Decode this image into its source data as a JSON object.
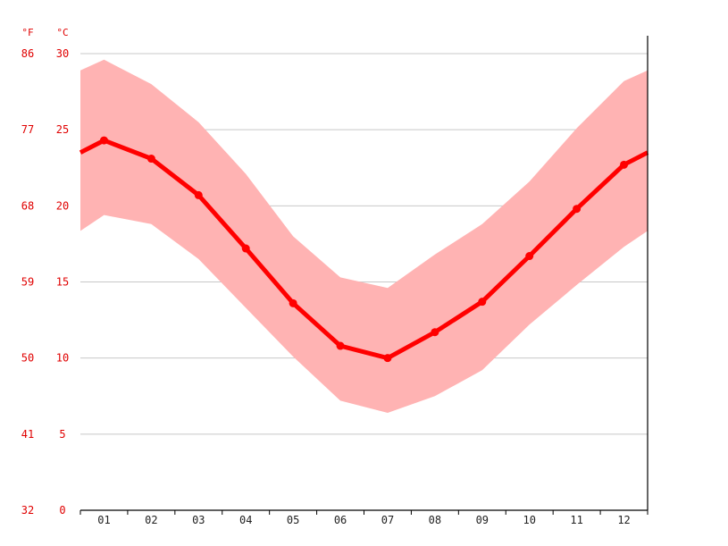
{
  "chart_data": {
    "type": "line",
    "units": {
      "fahrenheit": "°F",
      "celsius": "°C"
    },
    "categories": [
      "01",
      "02",
      "03",
      "04",
      "05",
      "06",
      "07",
      "08",
      "09",
      "10",
      "11",
      "12"
    ],
    "yticks_c": [
      0,
      5,
      10,
      15,
      20,
      25,
      30
    ],
    "yticks_f": [
      32,
      41,
      50,
      59,
      68,
      77,
      86
    ],
    "ylim": [
      0,
      30
    ],
    "grid": true,
    "series": [
      {
        "values": [
          24.3,
          23.1,
          20.7,
          17.2,
          13.6,
          10.8,
          10.0,
          11.7,
          13.7,
          16.7,
          19.8,
          22.7
        ]
      }
    ],
    "band_max": [
      29.6,
      28.0,
      25.5,
      22.1,
      18.0,
      15.3,
      14.6,
      16.8,
      18.8,
      21.6,
      25.1,
      28.2
    ],
    "band_min": [
      19.4,
      18.8,
      16.5,
      13.3,
      10.1,
      7.2,
      6.4,
      7.5,
      9.2,
      12.2,
      14.8,
      17.3
    ],
    "colors": {
      "line": "#ff0000",
      "band": "#ffb3b3",
      "axis_text": "#e00000",
      "grid": "#c8c8c8"
    }
  }
}
